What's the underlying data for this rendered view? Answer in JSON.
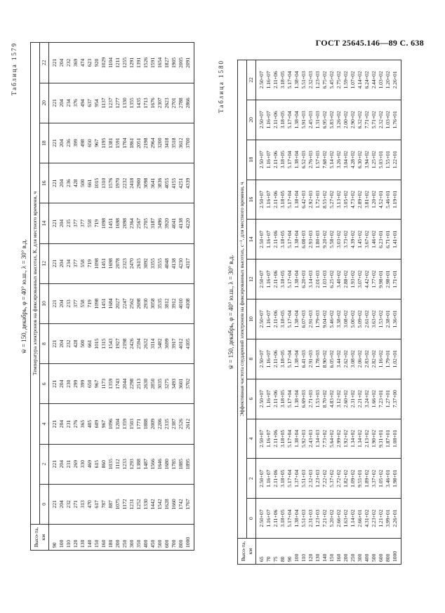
{
  "header": "ГОСТ 25645.146—89 С. 638",
  "tables": [
    {
      "title": "Таблица 1579",
      "subtitle": "w̄ = 150, декабрь, φ = 40° ю.ш., λ = 30° в.д.",
      "height_header": "Высо-та, км",
      "spanner": "Температура электронов на фиксированных высотах, К, для местного времени, ч",
      "columns": [
        "0",
        "2",
        "4",
        "6",
        "8",
        "10",
        "12",
        "14",
        "16",
        "18",
        "20",
        "22"
      ],
      "rows": [
        [
          "90",
          "221",
          "221",
          "221",
          "221",
          "221",
          "221",
          "221",
          "221",
          "221",
          "221",
          "221",
          "221"
        ],
        [
          "100",
          "204",
          "204",
          "204",
          "204",
          "204",
          "204",
          "204",
          "204",
          "204",
          "204",
          "204",
          "204"
        ],
        [
          "110",
          "232",
          "231",
          "231",
          "230",
          "232",
          "233",
          "234",
          "235",
          "236",
          "236",
          "234",
          "232"
        ],
        [
          "120",
          "271",
          "269",
          "276",
          "299",
          "428",
          "377",
          "377",
          "377",
          "428",
          "399",
          "376",
          "369"
        ],
        [
          "130",
          "313",
          "330",
          "365",
          "399",
          "500",
          "558",
          "558",
          "377",
          "500",
          "498",
          "494",
          "474"
        ],
        [
          "140",
          "470",
          "469",
          "405",
          "650",
          "661",
          "719",
          "719",
          "558",
          "661",
          "650",
          "637",
          "623"
        ],
        [
          "150",
          "617",
          "615",
          "609",
          "967",
          "1015",
          "1098",
          "1098",
          "719",
          "1015",
          "967",
          "954",
          "920"
        ],
        [
          "160",
          "787",
          "860",
          "967",
          "1173",
          "1315",
          "1451",
          "1451",
          "1098",
          "1310",
          "1195",
          "1137",
          "1029"
        ],
        [
          "180",
          "887",
          "1035",
          "1096",
          "1359",
          "1543",
          "1684",
          "1698",
          "1451",
          "1576",
          "1381",
          "1237",
          "1104"
        ],
        [
          "200",
          "1075",
          "1112",
          "1204",
          "1743",
          "1927",
          "2027",
          "2078",
          "1698",
          "1970",
          "1591",
          "1277",
          "1211"
        ],
        [
          "250",
          "1172",
          "1233",
          "1359",
          "2044",
          "2198",
          "2247",
          "2323",
          "2098",
          "2232",
          "1704",
          "1330",
          "1255"
        ],
        [
          "300",
          "1231",
          "1293",
          "1503",
          "2298",
          "2426",
          "2562",
          "2470",
          "2364",
          "2418",
          "1861",
          "1355",
          "1291"
        ],
        [
          "350",
          "1252",
          "1388",
          "1771",
          "2513",
          "2594",
          "2698",
          "2615",
          "2567",
          "2900",
          "2051",
          "1435",
          "1391"
        ],
        [
          "400",
          "1330",
          "1487",
          "1888",
          "2630",
          "2632",
          "2930",
          "3092",
          "2705",
          "3098",
          "2198",
          "1713",
          "1526"
        ],
        [
          "450",
          "1442",
          "1566",
          "2009",
          "2850",
          "3114",
          "3058",
          "3355",
          "3187",
          "3641",
          "2964",
          "1676",
          "1591"
        ],
        [
          "500",
          "1542",
          "1646",
          "2206",
          "3035",
          "3482",
          "3535",
          "3555",
          "3496",
          "3836",
          "3200",
          "2307",
          "1654"
        ],
        [
          "600",
          "1628",
          "1680",
          "2335",
          "3275",
          "3699",
          "3812",
          "4048",
          "3920",
          "4055",
          "3418",
          "2623",
          "1827"
        ],
        [
          "700",
          "1660",
          "1785",
          "2387",
          "3493",
          "3917",
          "3912",
          "4138",
          "4041",
          "4155",
          "3518",
          "2701",
          "1905"
        ],
        [
          "800",
          "1742",
          "1885",
          "2526",
          "3601",
          "4012",
          "4010",
          "4230",
          "4138",
          "4251",
          "3612",
          "2788",
          "2005"
        ],
        [
          "1000",
          "1767",
          "1895",
          "2612",
          "3702",
          "4105",
          "4108",
          "4317",
          "4220",
          "4339",
          "3700",
          "2866",
          "2091"
        ]
      ]
    },
    {
      "title": "Таблица 1580",
      "subtitle": "w̄ = 150, декабрь, φ = 40° ю.ш., λ = 30° в.д.",
      "height_header": "Высо-та, км",
      "spanner": "Эффективная частота соударений электронов на фиксированных высотах, с⁻¹, для местного времени, ч",
      "columns": [
        "0",
        "2",
        "4",
        "6",
        "8",
        "10",
        "12",
        "14",
        "16",
        "18",
        "20",
        "22"
      ],
      "rows": [
        [
          "65",
          "2.50+07",
          "2.50+07",
          "2.50+07",
          "2.50+07",
          "2.50+07",
          "2.50+07",
          "2.50+07",
          "2.50+07",
          "2.50+07",
          "2.50+07",
          "2.50+07",
          "2.50+07"
        ],
        [
          "70",
          "1.16+07",
          "1.16+07",
          "1.16+07",
          "1.16+07",
          "1.16+07",
          "1.16+07",
          "1.16+07",
          "1.16+07",
          "1.16+07",
          "1.16+07",
          "1.16+07",
          "1.16+07"
        ],
        [
          "75",
          "2.11+06",
          "2.11+06",
          "2.11+06",
          "2.11+06",
          "2.11+06",
          "2.11+06",
          "2.11+06",
          "2.11+06",
          "2.11+06",
          "2.11+06",
          "2.11+06",
          "2.11+06"
        ],
        [
          "80",
          "3.18+05",
          "3.18+05",
          "3.18+05",
          "3.18+05",
          "3.18+05",
          "3.18+05",
          "3.18+05",
          "3.18+05",
          "3.18+05",
          "3.18+05",
          "3.18+05",
          "3.18+05"
        ],
        [
          "90",
          "5.17+04",
          "5.17+04",
          "5.17+04",
          "5.17+04",
          "5.17+04",
          "5.17+04",
          "5.17+04",
          "5.17+04",
          "5.17+04",
          "5.17+04",
          "5.17+04",
          "5.17+04"
        ],
        [
          "100",
          "1.38+04",
          "1.37+04",
          "1.38+04",
          "1.38+04",
          "1.38+04",
          "1.38+04",
          "1.38+04",
          "1.38+04",
          "1.38+04",
          "1.38+04",
          "1.38+04",
          "1.38+04"
        ],
        [
          "110",
          "5.51+03",
          "5.51+03",
          "5.92+03",
          "6.69+03",
          "6.41+03",
          "6.07+03",
          "6.20+03",
          "6.08+03",
          "6.42+03",
          "6.52+03",
          "5.91+03",
          "5.51+03"
        ],
        [
          "120",
          "2.31+03",
          "2.32+03",
          "2.43+03",
          "2.71+03",
          "2.91+03",
          "2.91+03",
          "3.14+03",
          "2.93+03",
          "2.92+03",
          "2.76+03",
          "2.45+03",
          "2.32+03"
        ],
        [
          "130",
          "1.23+03",
          "1.23+03",
          "1.34+03",
          "1.53+03",
          "1.78+03",
          "1.79+03",
          "2.01+03",
          "1.80+03",
          "1.72+03",
          "1.57+03",
          "1.31+03",
          "1.23+03"
        ],
        [
          "140",
          "7.21+02",
          "7.22+02",
          "7.73+02",
          "8.70+02",
          "8.90+02",
          "9.04+02",
          "1.03+03",
          "9.20+02",
          "8.55+02",
          "7.68+02",
          "6.95+02",
          "6.75+02"
        ],
        [
          "150",
          "5.20+02",
          "5.37+02",
          "5.64+02",
          "4.83+02",
          "6.05+02",
          "5.46+02",
          "6.25+02",
          "5.58+02",
          "5.27+02",
          "5.14+02",
          "5.83+02",
          "5.45+02"
        ],
        [
          "160",
          "2.66+02",
          "2.72+02",
          "2.99+02",
          "3.12+02",
          "3.44+02",
          "3.38+02",
          "3.40+02",
          "3.03+02",
          "3.13+02",
          "3.26+02",
          "3.26+02",
          "2.75+02"
        ],
        [
          "200",
          "1.63+02",
          "1.82+02",
          "1.92+02",
          "2.60+02",
          "2.62+02",
          "3.08+02",
          "2.88+02",
          "3.73+02",
          "3.05+02",
          "3.04+02",
          "2.00+02",
          "1.59+02"
        ],
        [
          "250",
          "1.14+02",
          "1.09+02",
          "1.34+02",
          "2.31+02",
          "3.08+02",
          "5.00+02",
          "1.93+02",
          "4.39+02",
          "4.73+02",
          "4.28+02",
          "2.90+02",
          "1.07+02"
        ],
        [
          "300",
          "2.66+01",
          "9.55+01",
          "1.34+02",
          "2.21+02",
          "2.06+02",
          "5.09+02",
          "3.07+02",
          "1.45+02",
          "2.89+02",
          "6.30+02",
          "6.32+02",
          "4.14+02"
        ],
        [
          "400",
          "4.31+02",
          "1.89+02",
          "2.13+02",
          "3.24+02",
          "2.83+02",
          "2.61+02",
          "4.42+02",
          "3.67+02",
          "3.81+02",
          "3.94+02",
          "7.71+02",
          "6.24+02"
        ],
        [
          "500",
          "2.23+02",
          "3.37+02",
          "1.90+02",
          "1.66+02",
          "2.82+02",
          "3.63+02",
          "1.77+02",
          "1.46+02",
          "1.20+02",
          "1.25+02",
          "5.71+02",
          "2.44+02"
        ],
        [
          "600",
          "1.21+02",
          "1.05+02",
          "9.31+01",
          "7.23+01",
          "1.16+02",
          "1.53+02",
          "9.98+01",
          "6.23+01",
          "4.52+01",
          "5.03+01",
          "2.32+02",
          "1.03+02"
        ],
        [
          "800",
          "3.99+01",
          "3.46+01",
          "1.87+01",
          "1.27+01",
          "1.79+01",
          "2.38+01",
          "2.98+01",
          "6.71+01",
          "5.46+01",
          "1.55+01",
          "1.03+02",
          "1.20+02"
        ],
        [
          "1000",
          "2.26+01",
          "1.98+01",
          "1.08+01",
          "7.37+00",
          "1.02+01",
          "1.36+01",
          "1.71+01",
          "1.41+01",
          "1.19+01",
          "1.22+01",
          "1.76+01",
          "2.26+01"
        ]
      ]
    }
  ]
}
